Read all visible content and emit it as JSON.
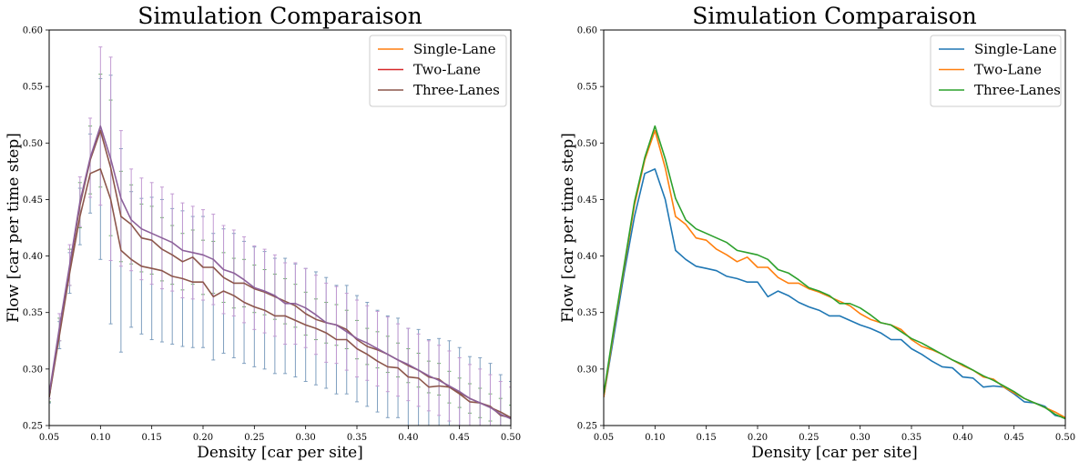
{
  "chart_data": [
    {
      "type": "line",
      "title": "Simulation Comparaison",
      "xlabel": "Density [car per site]",
      "ylabel": "Flow [car per time step]",
      "xlim": [
        0.05,
        0.5
      ],
      "ylim": [
        0.25,
        0.6
      ],
      "xticks": [
        "0.05",
        "0.10",
        "0.15",
        "0.20",
        "0.25",
        "0.30",
        "0.35",
        "0.40",
        "0.45",
        "0.50"
      ],
      "yticks": [
        "0.25",
        "0.30",
        "0.35",
        "0.40",
        "0.45",
        "0.50",
        "0.55",
        "0.60"
      ],
      "grid": false,
      "legend": "top-right",
      "error_bars": true,
      "legend_entries": [
        {
          "name": "Single-Lane",
          "color": "#ff7f0e"
        },
        {
          "name": "Two-Lane",
          "color": "#d62728"
        },
        {
          "name": "Three-Lanes",
          "color": "#8c564b"
        }
      ],
      "x": [
        0.05,
        0.06,
        0.07,
        0.08,
        0.09,
        0.1,
        0.11,
        0.12,
        0.13,
        0.14,
        0.15,
        0.16,
        0.17,
        0.18,
        0.19,
        0.2,
        0.21,
        0.22,
        0.23,
        0.24,
        0.25,
        0.26,
        0.27,
        0.28,
        0.29,
        0.3,
        0.31,
        0.32,
        0.33,
        0.34,
        0.35,
        0.36,
        0.37,
        0.38,
        0.39,
        0.4,
        0.41,
        0.42,
        0.43,
        0.44,
        0.45,
        0.46,
        0.47,
        0.48,
        0.49,
        0.5
      ],
      "series": [
        {
          "name": "Single-Lane",
          "color": "#8c564b",
          "values": [
            0.275,
            0.33,
            0.385,
            0.435,
            0.473,
            0.477,
            0.45,
            0.405,
            0.397,
            0.391,
            0.389,
            0.387,
            0.382,
            0.38,
            0.377,
            0.377,
            0.364,
            0.369,
            0.365,
            0.359,
            0.355,
            0.352,
            0.347,
            0.347,
            0.343,
            0.339,
            0.336,
            0.332,
            0.326,
            0.326,
            0.318,
            0.313,
            0.307,
            0.302,
            0.301,
            0.293,
            0.292,
            0.284,
            0.285,
            0.284,
            0.278,
            0.271,
            0.27,
            0.267,
            0.259,
            0.257
          ],
          "errors": [
            0.005,
            0.012,
            0.018,
            0.025,
            0.035,
            0.08,
            0.11,
            0.09,
            0.06,
            0.06,
            0.063,
            0.063,
            0.06,
            0.06,
            0.058,
            0.058,
            0.056,
            0.055,
            0.055,
            0.054,
            0.053,
            0.052,
            0.051,
            0.051,
            0.05,
            0.05,
            0.05,
            0.049,
            0.048,
            0.048,
            0.047,
            0.046,
            0.045,
            0.045,
            0.044,
            0.043,
            0.043,
            0.042,
            0.042,
            0.041,
            0.041,
            0.04,
            0.04,
            0.038,
            0.036,
            0.032
          ]
        },
        {
          "name": "Two-Lane",
          "color": "#8c564b",
          "values": [
            0.275,
            0.335,
            0.39,
            0.445,
            0.485,
            0.511,
            0.478,
            0.435,
            0.428,
            0.416,
            0.414,
            0.406,
            0.401,
            0.395,
            0.399,
            0.39,
            0.39,
            0.381,
            0.376,
            0.376,
            0.371,
            0.368,
            0.364,
            0.36,
            0.356,
            0.349,
            0.344,
            0.341,
            0.339,
            0.335,
            0.326,
            0.32,
            0.317,
            0.313,
            0.308,
            0.303,
            0.299,
            0.293,
            0.291,
            0.284,
            0.279,
            0.274,
            0.27,
            0.266,
            0.262,
            0.257
          ],
          "errors": [
            0.004,
            0.01,
            0.016,
            0.02,
            0.03,
            0.05,
            0.06,
            0.04,
            0.035,
            0.03,
            0.03,
            0.028,
            0.026,
            0.025,
            0.024,
            0.024,
            0.023,
            0.022,
            0.022,
            0.021,
            0.021,
            0.02,
            0.02,
            0.02,
            0.019,
            0.019,
            0.018,
            0.018,
            0.018,
            0.017,
            0.017,
            0.016,
            0.016,
            0.016,
            0.015,
            0.015,
            0.015,
            0.014,
            0.014,
            0.014,
            0.013,
            0.013,
            0.013,
            0.012,
            0.012,
            0.011
          ]
        },
        {
          "name": "Three-Lanes",
          "color": "#8c609a",
          "values": [
            0.278,
            0.337,
            0.392,
            0.448,
            0.487,
            0.515,
            0.486,
            0.451,
            0.432,
            0.424,
            0.42,
            0.416,
            0.412,
            0.405,
            0.403,
            0.401,
            0.397,
            0.388,
            0.385,
            0.379,
            0.372,
            0.369,
            0.365,
            0.358,
            0.358,
            0.354,
            0.348,
            0.341,
            0.339,
            0.333,
            0.327,
            0.323,
            0.318,
            0.313,
            0.308,
            0.304,
            0.299,
            0.294,
            0.29,
            0.285,
            0.28,
            0.274,
            0.27,
            0.266,
            0.26,
            0.256
          ],
          "errors": [
            0.004,
            0.012,
            0.018,
            0.022,
            0.035,
            0.07,
            0.09,
            0.06,
            0.045,
            0.045,
            0.045,
            0.045,
            0.043,
            0.042,
            0.041,
            0.04,
            0.04,
            0.039,
            0.038,
            0.038,
            0.037,
            0.037,
            0.036,
            0.036,
            0.036,
            0.035,
            0.035,
            0.035,
            0.034,
            0.034,
            0.034,
            0.033,
            0.033,
            0.033,
            0.032,
            0.032,
            0.032,
            0.031,
            0.031,
            0.031,
            0.03,
            0.03,
            0.03,
            0.029,
            0.029,
            0.028
          ]
        }
      ]
    },
    {
      "type": "line",
      "title": "Simulation Comparaison",
      "xlabel": "Density [car per site]",
      "ylabel": "Flow [car per time step]",
      "xlim": [
        0.05,
        0.5
      ],
      "ylim": [
        0.25,
        0.6
      ],
      "xticks": [
        "0.05",
        "0.10",
        "0.15",
        "0.20",
        "0.25",
        "0.30",
        "0.35",
        "0.40",
        "0.45",
        "0.50"
      ],
      "yticks": [
        "0.25",
        "0.30",
        "0.35",
        "0.40",
        "0.45",
        "0.50",
        "0.55",
        "0.60"
      ],
      "grid": false,
      "legend": "top-right",
      "x": [
        0.05,
        0.06,
        0.07,
        0.08,
        0.09,
        0.1,
        0.11,
        0.12,
        0.13,
        0.14,
        0.15,
        0.16,
        0.17,
        0.18,
        0.19,
        0.2,
        0.21,
        0.22,
        0.23,
        0.24,
        0.25,
        0.26,
        0.27,
        0.28,
        0.29,
        0.3,
        0.31,
        0.32,
        0.33,
        0.34,
        0.35,
        0.36,
        0.37,
        0.38,
        0.39,
        0.4,
        0.41,
        0.42,
        0.43,
        0.44,
        0.45,
        0.46,
        0.47,
        0.48,
        0.49,
        0.5
      ],
      "series": [
        {
          "name": "Single-Lane",
          "color": "#1f77b4",
          "values": [
            0.275,
            0.33,
            0.385,
            0.435,
            0.473,
            0.477,
            0.45,
            0.405,
            0.397,
            0.391,
            0.389,
            0.387,
            0.382,
            0.38,
            0.377,
            0.377,
            0.364,
            0.369,
            0.365,
            0.359,
            0.355,
            0.352,
            0.347,
            0.347,
            0.343,
            0.339,
            0.336,
            0.332,
            0.326,
            0.326,
            0.318,
            0.313,
            0.307,
            0.302,
            0.301,
            0.293,
            0.292,
            0.284,
            0.285,
            0.284,
            0.278,
            0.271,
            0.27,
            0.267,
            0.259,
            0.257
          ]
        },
        {
          "name": "Two-Lane",
          "color": "#ff7f0e",
          "values": [
            0.275,
            0.335,
            0.39,
            0.445,
            0.485,
            0.511,
            0.478,
            0.435,
            0.428,
            0.416,
            0.414,
            0.406,
            0.401,
            0.395,
            0.399,
            0.39,
            0.39,
            0.381,
            0.376,
            0.376,
            0.371,
            0.368,
            0.364,
            0.36,
            0.356,
            0.349,
            0.344,
            0.341,
            0.339,
            0.335,
            0.326,
            0.32,
            0.317,
            0.313,
            0.308,
            0.303,
            0.299,
            0.293,
            0.291,
            0.284,
            0.279,
            0.274,
            0.27,
            0.266,
            0.262,
            0.257
          ]
        },
        {
          "name": "Three-Lanes",
          "color": "#2ca02c",
          "values": [
            0.278,
            0.337,
            0.392,
            0.448,
            0.487,
            0.515,
            0.486,
            0.451,
            0.432,
            0.424,
            0.42,
            0.416,
            0.412,
            0.405,
            0.403,
            0.401,
            0.397,
            0.388,
            0.385,
            0.379,
            0.372,
            0.369,
            0.365,
            0.358,
            0.358,
            0.354,
            0.348,
            0.341,
            0.339,
            0.333,
            0.327,
            0.323,
            0.318,
            0.313,
            0.308,
            0.304,
            0.299,
            0.294,
            0.29,
            0.285,
            0.28,
            0.274,
            0.27,
            0.266,
            0.26,
            0.256
          ]
        }
      ]
    }
  ]
}
